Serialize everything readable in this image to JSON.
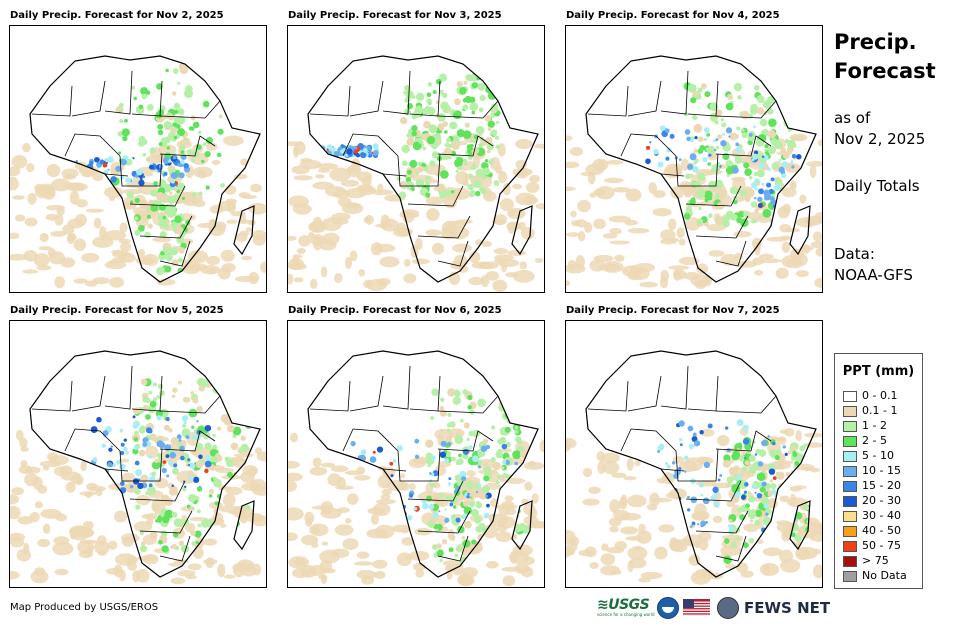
{
  "panels": [
    {
      "title": "Daily Precip. Forecast for Nov 2, 2025"
    },
    {
      "title": "Daily Precip. Forecast for Nov 3, 2025"
    },
    {
      "title": "Daily Precip. Forecast for Nov 4, 2025"
    },
    {
      "title": "Daily Precip. Forecast for Nov 5, 2025"
    },
    {
      "title": "Daily Precip. Forecast for Nov 6, 2025"
    },
    {
      "title": "Daily Precip. Forecast for Nov 7, 2025"
    }
  ],
  "side": {
    "title_line1": "Precip.",
    "title_line2": "Forecast",
    "asof_line1": "as of",
    "asof_line2": "Nov 2, 2025",
    "totals": "Daily Totals",
    "data_line1": "Data:",
    "data_line2": "NOAA-GFS"
  },
  "legend": {
    "title": "PPT (mm)",
    "items": [
      {
        "label": "0 - 0.1",
        "color": "#ffffff"
      },
      {
        "label": "0.1 - 1",
        "color": "#ecd8b4"
      },
      {
        "label": "1 - 2",
        "color": "#b6f0a8"
      },
      {
        "label": "2 - 5",
        "color": "#5ee35a"
      },
      {
        "label": "5 - 10",
        "color": "#a8eef5"
      },
      {
        "label": "10 - 15",
        "color": "#6aaef0"
      },
      {
        "label": "15 - 20",
        "color": "#3a86e8"
      },
      {
        "label": "20 - 30",
        "color": "#1c5ad0"
      },
      {
        "label": "30 - 40",
        "color": "#f8e08c"
      },
      {
        "label": "40 - 50",
        "color": "#f5a21a"
      },
      {
        "label": "50 - 75",
        "color": "#f0401a"
      },
      {
        "label": "> 75",
        "color": "#a81010"
      },
      {
        "label": "No Data",
        "color": "#a0a0a0"
      }
    ]
  },
  "footer": {
    "credit": "Map Produced by USGS/EROS",
    "usgs": "USGS",
    "usgs_tagline": "science for a changing world",
    "fews": "FEWS NET"
  }
}
